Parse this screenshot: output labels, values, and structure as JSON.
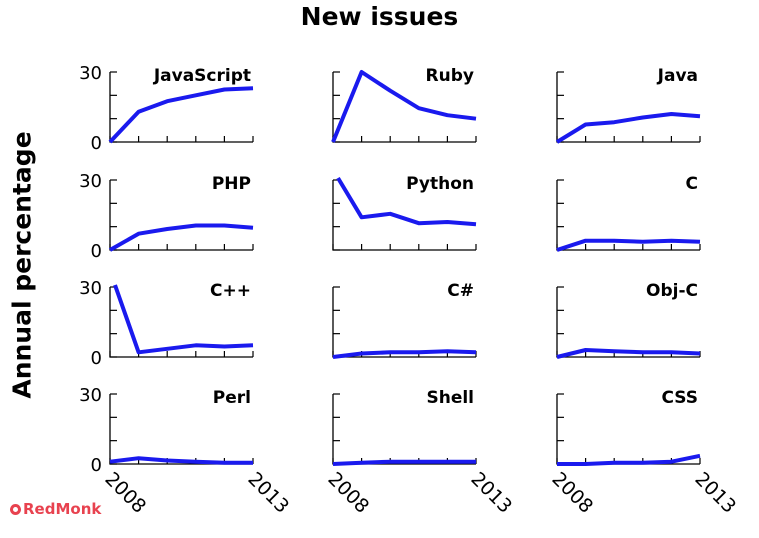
{
  "title": "New issues",
  "ylabel": "Annual percentage",
  "brand": "RedMonk",
  "series_color": "#1a1aee",
  "chart_data": {
    "type": "line",
    "title": "New issues",
    "ylabel": "Annual percentage",
    "xlabel": "",
    "x": [
      2008,
      2009,
      2010,
      2011,
      2012,
      2013
    ],
    "x_tick_labels": [
      "2008",
      "2013"
    ],
    "ylim": [
      0,
      30
    ],
    "y_tick_labels": [
      "0",
      "30"
    ],
    "grid": false,
    "panels": [
      {
        "name": "JavaScript",
        "values": [
          0,
          13,
          17.5,
          20,
          22.5,
          23
        ]
      },
      {
        "name": "Ruby",
        "values": [
          0,
          30,
          22,
          14.5,
          11.5,
          10
        ]
      },
      {
        "name": "Java",
        "values": [
          0,
          7.5,
          8.5,
          10.5,
          12,
          11
        ]
      },
      {
        "name": "PHP",
        "values": [
          0,
          7,
          9,
          10.5,
          10.5,
          9.5
        ]
      },
      {
        "name": "Python",
        "values": [
          null,
          14,
          15.5,
          11.5,
          12,
          11
        ]
      },
      {
        "name": "C",
        "values": [
          0,
          4,
          4,
          3.5,
          4,
          3.5
        ]
      },
      {
        "name": "C++",
        "values": [
          null,
          2,
          3.5,
          5,
          4.5,
          5
        ]
      },
      {
        "name": "C#",
        "values": [
          0,
          1.5,
          2,
          2,
          2.5,
          2
        ]
      },
      {
        "name": "Obj-C",
        "values": [
          0,
          3,
          2.5,
          2,
          2,
          1.5
        ]
      },
      {
        "name": "Perl",
        "values": [
          1,
          2.5,
          1.5,
          1,
          0.5,
          0.5
        ]
      },
      {
        "name": "Shell",
        "values": [
          0,
          0.5,
          1,
          1,
          1,
          1
        ]
      },
      {
        "name": "CSS",
        "values": [
          0,
          0,
          0.5,
          0.5,
          1,
          3.5
        ]
      }
    ]
  }
}
